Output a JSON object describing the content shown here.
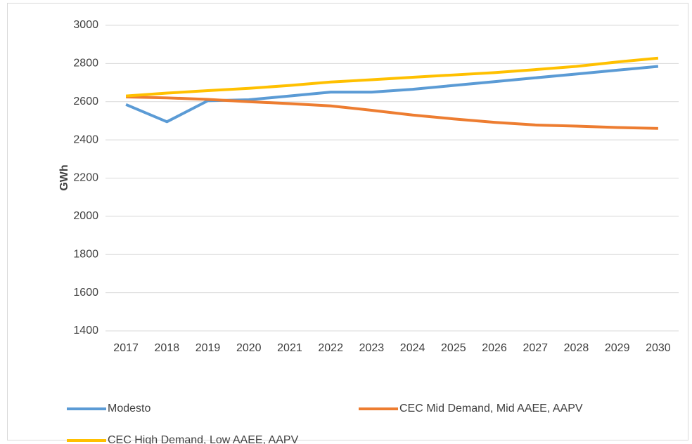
{
  "chart_data": {
    "type": "line",
    "ylabel": "GWh",
    "categories": [
      "2017",
      "2018",
      "2019",
      "2020",
      "2021",
      "2022",
      "2023",
      "2024",
      "2025",
      "2026",
      "2027",
      "2028",
      "2029",
      "2030"
    ],
    "series": [
      {
        "name": "Modesto",
        "color": "#5b9bd5",
        "values": [
          2585,
          2495,
          2605,
          2610,
          2630,
          2650,
          2650,
          2665,
          2685,
          2705,
          2725,
          2745,
          2765,
          2785
        ]
      },
      {
        "name": "CEC Mid Demand, Mid AAEE, AAPV",
        "color": "#ed7d31",
        "values": [
          2625,
          2620,
          2612,
          2600,
          2590,
          2578,
          2555,
          2530,
          2510,
          2492,
          2478,
          2472,
          2465,
          2460
        ]
      },
      {
        "name": "CEC High Demand, Low AAEE, AAPV",
        "color": "#ffc000",
        "values": [
          2630,
          2645,
          2658,
          2670,
          2685,
          2703,
          2715,
          2728,
          2740,
          2752,
          2768,
          2785,
          2808,
          2828
        ]
      }
    ],
    "ylim": [
      1400,
      3000
    ],
    "yticks": [
      1400,
      1600,
      1800,
      2000,
      2200,
      2400,
      2600,
      2800,
      3000
    ],
    "grid": true,
    "legend": "bottom"
  }
}
